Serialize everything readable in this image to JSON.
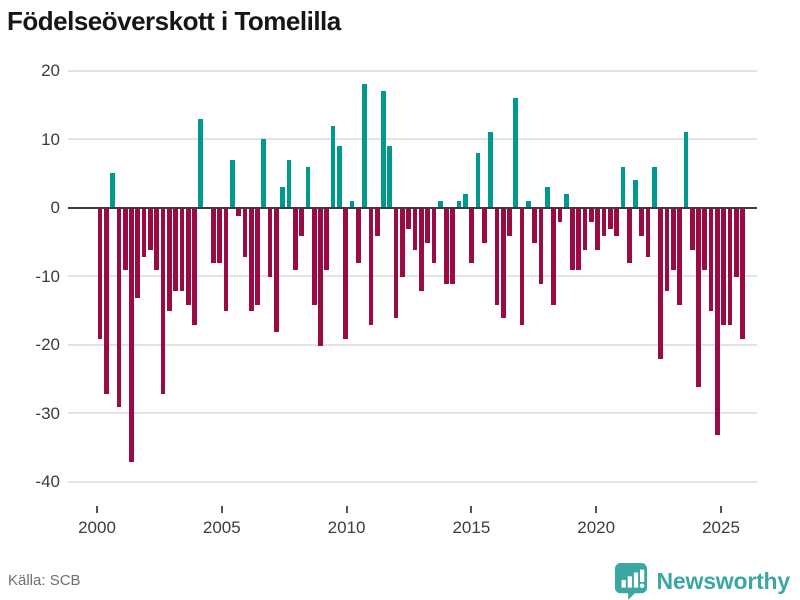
{
  "title": "Födelseöverskott i Tomelilla",
  "source": "Källa: SCB",
  "branding": {
    "name": "Newsworthy"
  },
  "colors": {
    "positive_bar": "#00998f",
    "negative_bar": "#9b0a43",
    "grid": "#e4e4e4",
    "zero_axis": "#3c3c3c",
    "tick_text": "#3d3d3d",
    "source_text": "#6f6f6f",
    "brand_teal": "#3ba7a3",
    "title_text": "#161616"
  },
  "chart_data": {
    "type": "bar",
    "title": "Födelseöverskott i Tomelilla",
    "frequency": "quarterly",
    "start_period": "2000 Q1",
    "end_period": "2025 Q3",
    "values": [
      -19,
      -27,
      5,
      -29,
      -9,
      -37,
      -13,
      -7,
      -6,
      -9,
      -27,
      -15,
      -12,
      -12,
      -14,
      -17,
      13,
      0,
      -8,
      -8,
      -15,
      7,
      -1,
      -7,
      -15,
      -14,
      10,
      -10,
      -18,
      3,
      7,
      -9,
      -4,
      6,
      -14,
      -20,
      -9,
      12,
      9,
      -19,
      1,
      -8,
      18,
      -17,
      -4,
      17,
      9,
      -16,
      -10,
      -3,
      -6,
      -12,
      -5,
      -8,
      1,
      -11,
      -11,
      1,
      2,
      -8,
      8,
      -5,
      11,
      -14,
      -16,
      -4,
      16,
      -17,
      1,
      -5,
      -11,
      3,
      -14,
      -2,
      2,
      -9,
      -9,
      -6,
      -2,
      -6,
      -4,
      -3,
      -4,
      6,
      -8,
      4,
      -4,
      -7,
      6,
      -22,
      -12,
      -9,
      -14,
      11,
      -6,
      -26,
      -9,
      -15,
      -33,
      -17,
      -17,
      -10,
      -19
    ],
    "x_tick_labels": [
      "2000",
      "2005",
      "2010",
      "2015",
      "2020",
      "2025"
    ],
    "y_ticks": [
      20,
      10,
      0,
      -10,
      -20,
      -30,
      -40
    ],
    "ylim": [
      -40,
      20
    ],
    "grid": true,
    "legend": "none"
  }
}
